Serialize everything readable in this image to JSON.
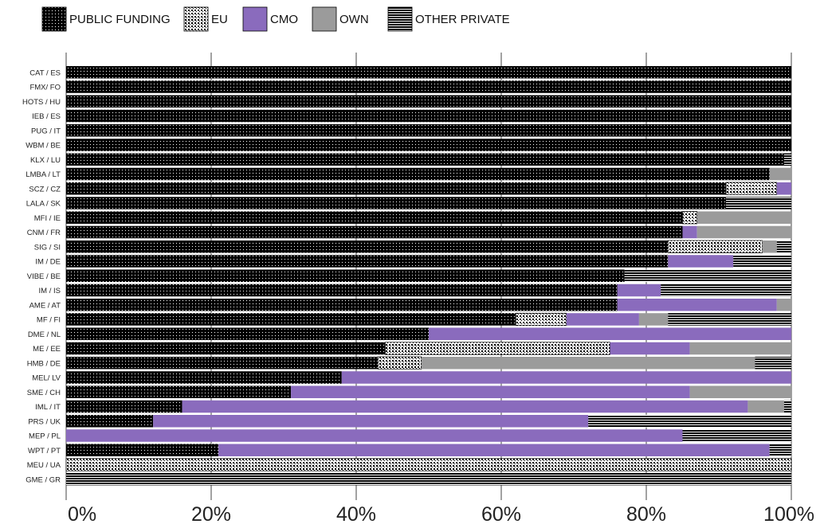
{
  "colors": {
    "public_funding": "#000000",
    "eu": "#ffffff",
    "cmo": "#8a6bbd",
    "own": "#9b9b9b",
    "other_private": "#000000",
    "grid": "#444444"
  },
  "legend": [
    {
      "key": "public",
      "label": "PUBLIC FUNDING"
    },
    {
      "key": "eu",
      "label": "EU"
    },
    {
      "key": "cmo",
      "label": "CMO"
    },
    {
      "key": "own",
      "label": "OWN"
    },
    {
      "key": "other",
      "label": "OTHER PRIVATE"
    }
  ],
  "chart_data": {
    "type": "bar",
    "orientation": "horizontal",
    "stacked": true,
    "title": "",
    "xlabel": "",
    "ylabel": "",
    "xlim": [
      0,
      100
    ],
    "x_ticks": [
      "0%",
      "20%",
      "40%",
      "60%",
      "80%",
      "100%"
    ],
    "grid": true,
    "legend_position": "top-left",
    "categories": [
      "CAT / ES",
      "FMX/ FO",
      "HOTS / HU",
      "IEB / ES",
      "PUG / IT",
      "WBM / BE",
      "KLX / LU",
      "LMBA / LT",
      "SCZ / CZ",
      "LALA / SK",
      "MFI / IE",
      "CNM / FR",
      "SIG / SI",
      "IM / DE",
      "VIBE / BE",
      "IM / IS",
      "AME / AT",
      "MF / FI",
      "DME / NL",
      "ME / EE",
      "HMB / DE",
      "MEL/ LV",
      "SME / CH",
      "IML / IT",
      "PRS / UK",
      "MEP / PL",
      "WPT / PT",
      "MEU / UA",
      "GME / GR"
    ],
    "series": [
      {
        "key": "public",
        "name": "PUBLIC FUNDING",
        "values": [
          100,
          100,
          100,
          100,
          100,
          100,
          99,
          97,
          91,
          91,
          85,
          85,
          83,
          83,
          77,
          76,
          76,
          62,
          50,
          44,
          43,
          38,
          31,
          16,
          12,
          0,
          21,
          0,
          0
        ]
      },
      {
        "key": "eu",
        "name": "EU",
        "values": [
          0,
          0,
          0,
          0,
          0,
          0,
          0,
          0,
          7,
          0,
          2,
          0,
          13,
          0,
          0,
          0,
          0,
          7,
          0,
          31,
          6,
          0,
          0,
          0,
          0,
          0,
          0,
          100,
          0
        ]
      },
      {
        "key": "cmo",
        "name": "CMO",
        "values": [
          0,
          0,
          0,
          0,
          0,
          0,
          0,
          0,
          2,
          0,
          0,
          2,
          0,
          9,
          0,
          6,
          22,
          10,
          50,
          11,
          0,
          62,
          55,
          78,
          60,
          85,
          76,
          0,
          0
        ]
      },
      {
        "key": "own",
        "name": "OWN",
        "values": [
          0,
          0,
          0,
          0,
          0,
          0,
          0,
          3,
          0,
          0,
          13,
          13,
          2,
          0,
          0,
          0,
          2,
          4,
          0,
          14,
          46,
          0,
          14,
          5,
          0,
          0,
          0,
          0,
          0
        ]
      },
      {
        "key": "other",
        "name": "OTHER PRIVATE",
        "values": [
          0,
          0,
          0,
          0,
          0,
          0,
          1,
          0,
          0,
          9,
          0,
          0,
          2,
          8,
          23,
          18,
          0,
          17,
          0,
          0,
          5,
          0,
          0,
          1,
          28,
          15,
          3,
          0,
          100
        ]
      }
    ]
  }
}
